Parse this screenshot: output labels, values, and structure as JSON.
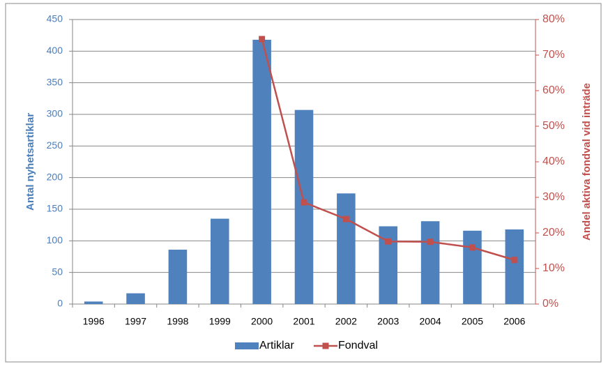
{
  "chart_data": {
    "type": "bar-line",
    "categories": [
      "1996",
      "1997",
      "1998",
      "1999",
      "2000",
      "2001",
      "2002",
      "2003",
      "2004",
      "2005",
      "2006"
    ],
    "series": [
      {
        "name": "Artiklar",
        "type": "bar",
        "color": "#4f81bd",
        "values": [
          4,
          17,
          86,
          135,
          418,
          307,
          175,
          123,
          131,
          116,
          118
        ]
      },
      {
        "name": "Fondval",
        "type": "line",
        "axis": "y2",
        "color": "#c0504d",
        "values": [
          null,
          null,
          null,
          null,
          74.5,
          28.6,
          23.9,
          17.6,
          17.5,
          15.9,
          12.4
        ]
      }
    ],
    "y_label": "Antal nyhetsartiklar",
    "y2_label": "Andel aktiva fondval vid inträde",
    "ylim": [
      0,
      450
    ],
    "yticks": [
      0,
      50,
      100,
      150,
      200,
      250,
      300,
      350,
      400,
      450
    ],
    "y2lim": [
      0,
      80
    ],
    "y2ticks": [
      {
        "value": 0,
        "label": "0%"
      },
      {
        "value": 10,
        "label": "10%"
      },
      {
        "value": 20,
        "label": "20%"
      },
      {
        "value": 30,
        "label": "30%"
      },
      {
        "value": 40,
        "label": "40%"
      },
      {
        "value": 50,
        "label": "50%"
      },
      {
        "value": 60,
        "label": "60%"
      },
      {
        "value": 70,
        "label": "70%"
      },
      {
        "value": 80,
        "label": "80%"
      }
    ],
    "grid": true,
    "legend": "bottom"
  }
}
